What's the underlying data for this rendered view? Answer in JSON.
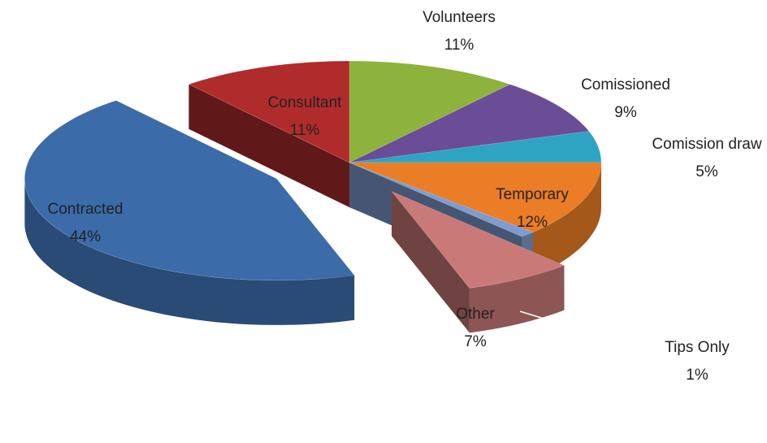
{
  "chart_data": {
    "type": "pie",
    "categories": [
      "Volunteers",
      "Comissioned",
      "Comission draw",
      "Temporary",
      "Tips Only",
      "Other",
      "Contracted",
      "Consultant"
    ],
    "values": [
      11,
      9,
      5,
      12,
      1,
      7,
      44,
      11
    ],
    "value_labels": [
      "11%",
      "9%",
      "5%",
      "12%",
      "1%",
      "7%",
      "44%",
      "11%"
    ],
    "colors": [
      "#8db33c",
      "#6b4c96",
      "#2fa3c2",
      "#ea7d25",
      "#7f9ccf",
      "#c97a78",
      "#3b6ba9",
      "#b02c2c"
    ],
    "explode": [
      false,
      false,
      false,
      false,
      false,
      true,
      true,
      false
    ]
  }
}
